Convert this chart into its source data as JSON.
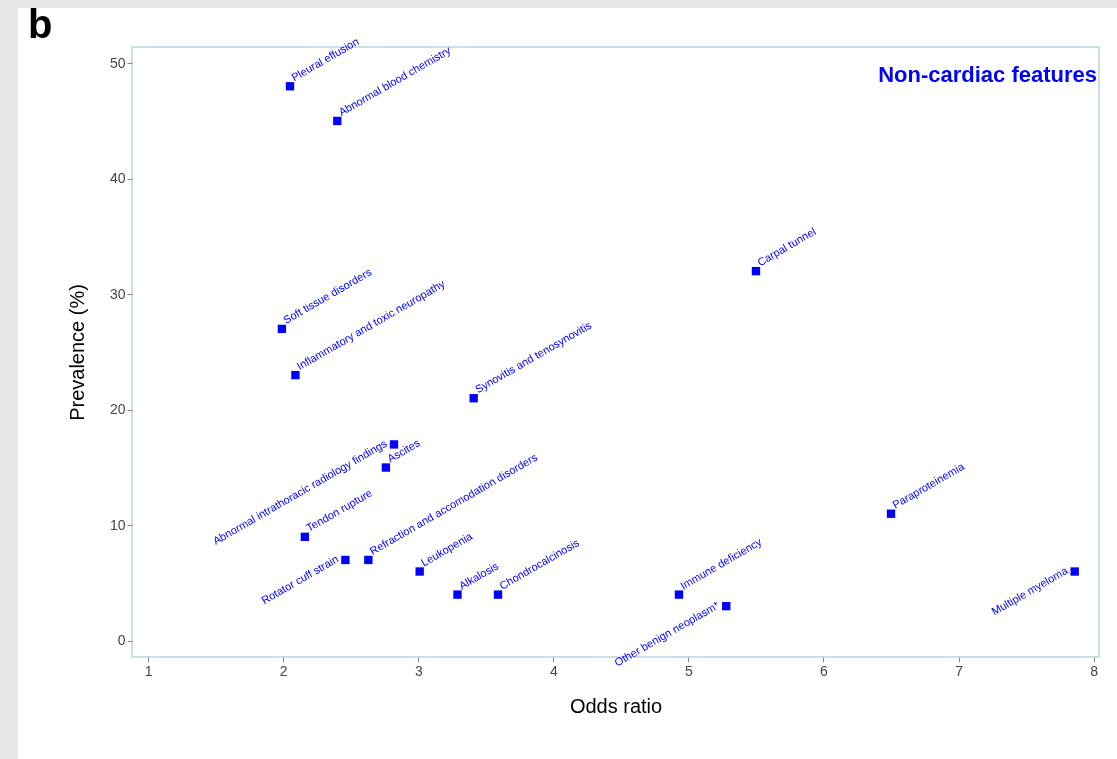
{
  "chart_data": {
    "type": "scatter",
    "title": "Non-cardiac features",
    "xlabel": "Odds ratio",
    "ylabel": "Prevalence (%)",
    "x": [
      2.05,
      2.4,
      1.99,
      2.09,
      3.41,
      5.5,
      2.82,
      2.76,
      2.16,
      2.46,
      2.63,
      3.01,
      3.29,
      3.59,
      4.93,
      5.28,
      6.5,
      7.86
    ],
    "series": [
      {
        "color": "#0000ff",
        "values": [
          48,
          45,
          27,
          23,
          21,
          32,
          17,
          15,
          9,
          7,
          7,
          6,
          4,
          4,
          4,
          3,
          11,
          6
        ]
      }
    ],
    "xlim": [
      0.88,
      8.04
    ],
    "ylim": [
      -1.4,
      51.4
    ],
    "xticks": [
      1,
      2,
      3,
      4,
      5,
      6,
      7,
      8
    ],
    "yticks": [
      0,
      10,
      20,
      30,
      40,
      50
    ],
    "marker": "square",
    "grid": false,
    "annotations": [
      "b",
      {
        "text": "Pleural effusion",
        "x": 2.05,
        "y": 48
      },
      {
        "text": "Abnormal blood chemistry",
        "x": 2.4,
        "y": 45
      },
      {
        "text": "Soft tissue disorders",
        "x": 1.99,
        "y": 27
      },
      {
        "text": "Inflammatory and toxic neuropathy",
        "x": 2.09,
        "y": 23
      },
      {
        "text": "Synovitis and tenosynovitis",
        "x": 3.41,
        "y": 21
      },
      {
        "text": "Carpal tunnel",
        "x": 5.5,
        "y": 32
      },
      {
        "text": "Abnormal intrathoracic radiology findings",
        "x": 2.82,
        "y": 17
      },
      {
        "text": "Ascites",
        "x": 2.76,
        "y": 15
      },
      {
        "text": "Tendon rupture",
        "x": 2.16,
        "y": 9
      },
      {
        "text": "Rotator cuff strain",
        "x": 2.46,
        "y": 7
      },
      {
        "text": "Refraction and accomodation disorders",
        "x": 2.63,
        "y": 7
      },
      {
        "text": "Leukopenia",
        "x": 3.01,
        "y": 6
      },
      {
        "text": "Alkalosis",
        "x": 3.29,
        "y": 4
      },
      {
        "text": "Chondrocalcinosis",
        "x": 3.59,
        "y": 4
      },
      {
        "text": "Immune deficiency",
        "x": 4.93,
        "y": 4
      },
      {
        "text": "Other benign neoplasm*",
        "x": 5.28,
        "y": 3
      },
      {
        "text": "Paraproteinemia",
        "x": 6.5,
        "y": 11
      },
      {
        "text": "Multiple myeloma",
        "x": 7.86,
        "y": 6
      }
    ]
  }
}
